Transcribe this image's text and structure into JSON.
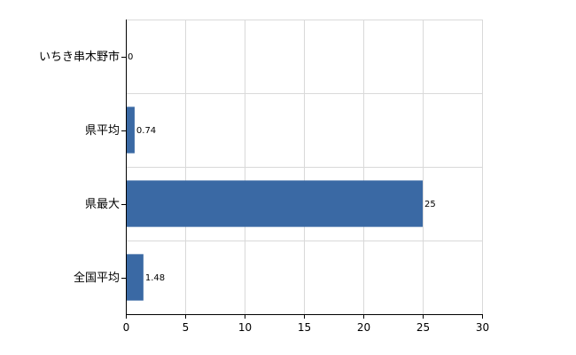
{
  "chart_data": {
    "type": "bar",
    "orientation": "horizontal",
    "categories": [
      "いちき串木野市",
      "県平均",
      "県最大",
      "全国平均"
    ],
    "values": [
      0,
      0.74,
      25,
      1.48
    ],
    "data_labels": [
      "0",
      "0.74",
      "25",
      "1.48"
    ],
    "title": "",
    "xlabel": "",
    "ylabel": "",
    "xlim": [
      0,
      30
    ],
    "xticks": [
      0,
      5,
      10,
      15,
      20,
      25,
      30
    ],
    "xtick_labels": [
      "0",
      "5",
      "10",
      "15",
      "20",
      "25",
      "30"
    ],
    "grid": true,
    "legend": "none",
    "colors": {
      "bar": "#3a69a4",
      "grid": "#d9d9d9",
      "axis": "#000000"
    }
  }
}
